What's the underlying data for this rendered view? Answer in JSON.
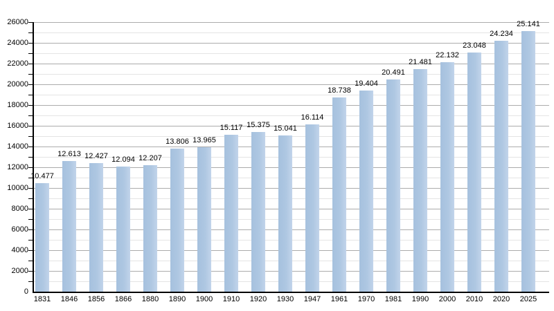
{
  "chart_data": {
    "type": "bar",
    "title": "",
    "xlabel": "",
    "ylabel": "",
    "categories": [
      "1831",
      "1846",
      "1856",
      "1866",
      "1880",
      "1890",
      "1900",
      "1910",
      "1920",
      "1930",
      "1947",
      "1961",
      "1970",
      "1981",
      "1990",
      "2000",
      "2010",
      "2020",
      "2025"
    ],
    "values": [
      10477,
      12613,
      12427,
      12094,
      12207,
      13806,
      13965,
      15117,
      15375,
      15041,
      16114,
      18738,
      19404,
      20491,
      21481,
      22132,
      23048,
      24234,
      25141
    ],
    "value_labels": [
      "10.477",
      "12.613",
      "12.427",
      "12.094",
      "12.207",
      "13.806",
      "13.965",
      "15.117",
      "15.375",
      "15.041",
      "16.114",
      "18.738",
      "19.404",
      "20.491",
      "21.481",
      "22.132",
      "23.048",
      "24.234",
      "25.141"
    ],
    "ylim": [
      0,
      26000
    ],
    "y_major_step": 2000,
    "y_minor_step": 1000,
    "y_tick_labels": [
      "0",
      "2000",
      "4000",
      "6000",
      "8000",
      "10000",
      "12000",
      "14000",
      "16000",
      "18000",
      "20000",
      "22000",
      "24000",
      "26000"
    ],
    "grid": "on",
    "legend": "none",
    "colors": {
      "bar_fill": "#aec7e2",
      "bar_fill_dark": "#a6c1de",
      "bar_fill_light": "#c2d4ea",
      "grid_major": "#ababab",
      "grid_minor": "#e4e4e4",
      "axis": "#000000",
      "text": "#000000",
      "background": "#ffffff"
    }
  }
}
